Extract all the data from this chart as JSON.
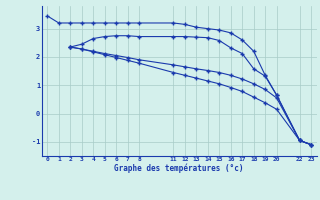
{
  "xlabel": "Graphe des températures (°c)",
  "background_color": "#d4f0ec",
  "line_color": "#1a3aad",
  "grid_color": "#a8ccc8",
  "ylim": [
    -1.5,
    3.8
  ],
  "xlim": [
    -0.5,
    23.5
  ],
  "yticks": [
    -1,
    0,
    1,
    2,
    3
  ],
  "xticks": [
    0,
    1,
    2,
    3,
    4,
    5,
    6,
    7,
    8,
    11,
    12,
    13,
    14,
    15,
    16,
    17,
    18,
    19,
    20,
    22,
    23
  ],
  "curve1_x": [
    0,
    1,
    2,
    3,
    4,
    5,
    6,
    7,
    8,
    11,
    12,
    13,
    14,
    15,
    16,
    17,
    18,
    19,
    20,
    22,
    23
  ],
  "curve1_y": [
    3.45,
    3.2,
    3.2,
    3.2,
    3.2,
    3.2,
    3.2,
    3.2,
    3.2,
    3.2,
    3.15,
    3.05,
    3.0,
    2.95,
    2.85,
    2.6,
    2.2,
    1.35,
    0.65,
    -0.95,
    -1.1
  ],
  "curve2_x": [
    2,
    3,
    4,
    5,
    6,
    7,
    8,
    11,
    12,
    13,
    14,
    15,
    16,
    17,
    18,
    19,
    20,
    22,
    23
  ],
  "curve2_y": [
    2.35,
    2.45,
    2.65,
    2.72,
    2.75,
    2.75,
    2.72,
    2.72,
    2.72,
    2.7,
    2.68,
    2.58,
    2.32,
    2.12,
    1.58,
    1.32,
    0.65,
    -0.95,
    -1.1
  ],
  "curve3_x": [
    2,
    3,
    4,
    5,
    6,
    7,
    8,
    11,
    12,
    13,
    14,
    15,
    16,
    17,
    18,
    19,
    20,
    22,
    23
  ],
  "curve3_y": [
    2.35,
    2.28,
    2.2,
    2.12,
    2.05,
    1.98,
    1.9,
    1.72,
    1.65,
    1.58,
    1.52,
    1.45,
    1.35,
    1.22,
    1.05,
    0.85,
    0.55,
    -0.95,
    -1.1
  ],
  "curve4_x": [
    2,
    3,
    4,
    5,
    6,
    7,
    8,
    11,
    12,
    13,
    14,
    15,
    16,
    17,
    18,
    19,
    20,
    22,
    23
  ],
  "curve4_y": [
    2.35,
    2.28,
    2.18,
    2.08,
    1.98,
    1.88,
    1.78,
    1.45,
    1.35,
    1.25,
    1.15,
    1.05,
    0.92,
    0.78,
    0.58,
    0.38,
    0.15,
    -0.95,
    -1.1
  ]
}
